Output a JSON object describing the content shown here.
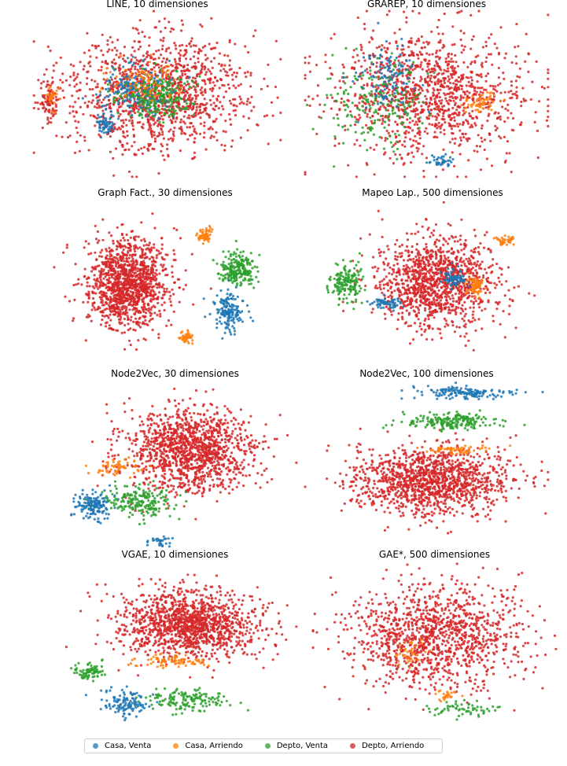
{
  "chart_data": {
    "type": "scatter",
    "colors": {
      "casa_venta": "#1f77b4",
      "casa_arriendo": "#ff7f0e",
      "depto_venta": "#2ca02c",
      "depto_arriendo": "#d62728"
    },
    "legend": {
      "placement": "bottom-center",
      "entries": [
        {
          "key": "casa_venta",
          "label": "Casa, Venta"
        },
        {
          "key": "casa_arriendo",
          "label": "Casa, Arriendo"
        },
        {
          "key": "depto_venta",
          "label": "Depto, Venta"
        },
        {
          "key": "depto_arriendo",
          "label": "Depto, Arriendo"
        }
      ]
    },
    "panels": [
      {
        "title": "LINE, 10 dimensiones",
        "clusters": [
          {
            "cls": "depto_arriendo",
            "x": 0.5,
            "y": 0.5,
            "sx": 0.3,
            "sy": 0.28,
            "n": 1300
          },
          {
            "cls": "depto_arriendo",
            "x": 0.07,
            "y": 0.55,
            "sx": 0.035,
            "sy": 0.09,
            "n": 80
          },
          {
            "cls": "casa_arriendo",
            "x": 0.08,
            "y": 0.52,
            "sx": 0.025,
            "sy": 0.06,
            "n": 25
          },
          {
            "cls": "casa_venta",
            "x": 0.42,
            "y": 0.47,
            "sx": 0.12,
            "sy": 0.13,
            "n": 220
          },
          {
            "cls": "depto_venta",
            "x": 0.5,
            "y": 0.52,
            "sx": 0.12,
            "sy": 0.12,
            "n": 220
          },
          {
            "cls": "casa_arriendo",
            "x": 0.45,
            "y": 0.42,
            "sx": 0.14,
            "sy": 0.1,
            "n": 90
          },
          {
            "cls": "casa_venta",
            "x": 0.29,
            "y": 0.68,
            "sx": 0.03,
            "sy": 0.05,
            "n": 60
          }
        ]
      },
      {
        "title": "GRAREP, 10 dimensiones",
        "clusters": [
          {
            "cls": "depto_arriendo",
            "x": 0.5,
            "y": 0.5,
            "sx": 0.32,
            "sy": 0.3,
            "n": 1200
          },
          {
            "cls": "depto_venta",
            "x": 0.3,
            "y": 0.55,
            "sx": 0.17,
            "sy": 0.22,
            "n": 200
          },
          {
            "cls": "casa_venta",
            "x": 0.35,
            "y": 0.4,
            "sx": 0.1,
            "sy": 0.15,
            "n": 110
          },
          {
            "cls": "casa_arriendo",
            "x": 0.72,
            "y": 0.55,
            "sx": 0.06,
            "sy": 0.05,
            "n": 60
          },
          {
            "cls": "casa_venta",
            "x": 0.55,
            "y": 0.9,
            "sx": 0.05,
            "sy": 0.03,
            "n": 40
          }
        ]
      },
      {
        "title": "Graph Fact., 30 dimensiones",
        "clusters": [
          {
            "cls": "depto_arriendo",
            "x": 0.35,
            "y": 0.5,
            "sx": 0.14,
            "sy": 0.22,
            "n": 1300
          },
          {
            "cls": "depto_venta",
            "x": 0.8,
            "y": 0.42,
            "sx": 0.06,
            "sy": 0.08,
            "n": 220
          },
          {
            "cls": "casa_venta",
            "x": 0.76,
            "y": 0.67,
            "sx": 0.05,
            "sy": 0.09,
            "n": 170
          },
          {
            "cls": "casa_arriendo",
            "x": 0.66,
            "y": 0.22,
            "sx": 0.025,
            "sy": 0.04,
            "n": 60
          },
          {
            "cls": "casa_arriendo",
            "x": 0.59,
            "y": 0.82,
            "sx": 0.025,
            "sy": 0.03,
            "n": 40
          }
        ]
      },
      {
        "title": "Mapeo Lap., 500 dimensiones",
        "clusters": [
          {
            "cls": "depto_arriendo",
            "x": 0.52,
            "y": 0.5,
            "sx": 0.2,
            "sy": 0.22,
            "n": 1200
          },
          {
            "cls": "depto_venta",
            "x": 0.15,
            "y": 0.5,
            "sx": 0.06,
            "sy": 0.09,
            "n": 160
          },
          {
            "cls": "casa_venta",
            "x": 0.31,
            "y": 0.62,
            "sx": 0.05,
            "sy": 0.03,
            "n": 60
          },
          {
            "cls": "casa_venta",
            "x": 0.59,
            "y": 0.47,
            "sx": 0.04,
            "sy": 0.05,
            "n": 80
          },
          {
            "cls": "casa_arriendo",
            "x": 0.68,
            "y": 0.52,
            "sx": 0.03,
            "sy": 0.05,
            "n": 70
          },
          {
            "cls": "casa_arriendo",
            "x": 0.8,
            "y": 0.25,
            "sx": 0.04,
            "sy": 0.03,
            "n": 40
          }
        ]
      },
      {
        "title": "Node2Vec, 30 dimensiones",
        "clusters": [
          {
            "cls": "depto_arriendo",
            "x": 0.56,
            "y": 0.42,
            "sx": 0.22,
            "sy": 0.2,
            "n": 1300
          },
          {
            "cls": "casa_arriendo",
            "x": 0.27,
            "y": 0.52,
            "sx": 0.09,
            "sy": 0.04,
            "n": 60
          },
          {
            "cls": "depto_venta",
            "x": 0.35,
            "y": 0.73,
            "sx": 0.13,
            "sy": 0.08,
            "n": 200
          },
          {
            "cls": "casa_venta",
            "x": 0.17,
            "y": 0.75,
            "sx": 0.06,
            "sy": 0.07,
            "n": 150
          },
          {
            "cls": "casa_venta",
            "x": 0.43,
            "y": 0.96,
            "sx": 0.05,
            "sy": 0.02,
            "n": 30
          }
        ]
      },
      {
        "title": "Node2Vec, 100 dimensiones",
        "clusters": [
          {
            "cls": "depto_arriendo",
            "x": 0.52,
            "y": 0.6,
            "sx": 0.26,
            "sy": 0.16,
            "n": 1300
          },
          {
            "cls": "casa_venta",
            "x": 0.66,
            "y": 0.08,
            "sx": 0.17,
            "sy": 0.03,
            "n": 150
          },
          {
            "cls": "depto_venta",
            "x": 0.6,
            "y": 0.25,
            "sx": 0.16,
            "sy": 0.04,
            "n": 200
          },
          {
            "cls": "casa_arriendo",
            "x": 0.62,
            "y": 0.42,
            "sx": 0.12,
            "sy": 0.02,
            "n": 60
          }
        ]
      },
      {
        "title": "VGAE, 10 dimensiones",
        "clusters": [
          {
            "cls": "depto_arriendo",
            "x": 0.55,
            "y": 0.38,
            "sx": 0.24,
            "sy": 0.17,
            "n": 1300
          },
          {
            "cls": "casa_arriendo",
            "x": 0.48,
            "y": 0.6,
            "sx": 0.13,
            "sy": 0.03,
            "n": 80
          },
          {
            "cls": "depto_venta",
            "x": 0.15,
            "y": 0.66,
            "sx": 0.05,
            "sy": 0.04,
            "n": 80
          },
          {
            "cls": "depto_venta",
            "x": 0.55,
            "y": 0.83,
            "sx": 0.14,
            "sy": 0.06,
            "n": 150
          },
          {
            "cls": "casa_venta",
            "x": 0.3,
            "y": 0.85,
            "sx": 0.08,
            "sy": 0.06,
            "n": 120
          }
        ]
      },
      {
        "title": "GAE*, 500 dimensiones",
        "clusters": [
          {
            "cls": "depto_arriendo",
            "x": 0.5,
            "y": 0.45,
            "sx": 0.28,
            "sy": 0.25,
            "n": 1200
          },
          {
            "cls": "casa_arriendo",
            "x": 0.4,
            "y": 0.55,
            "sx": 0.05,
            "sy": 0.06,
            "n": 40
          },
          {
            "cls": "depto_venta",
            "x": 0.63,
            "y": 0.88,
            "sx": 0.12,
            "sy": 0.04,
            "n": 60
          },
          {
            "cls": "casa_arriendo",
            "x": 0.55,
            "y": 0.8,
            "sx": 0.03,
            "sy": 0.03,
            "n": 25
          }
        ]
      }
    ]
  }
}
